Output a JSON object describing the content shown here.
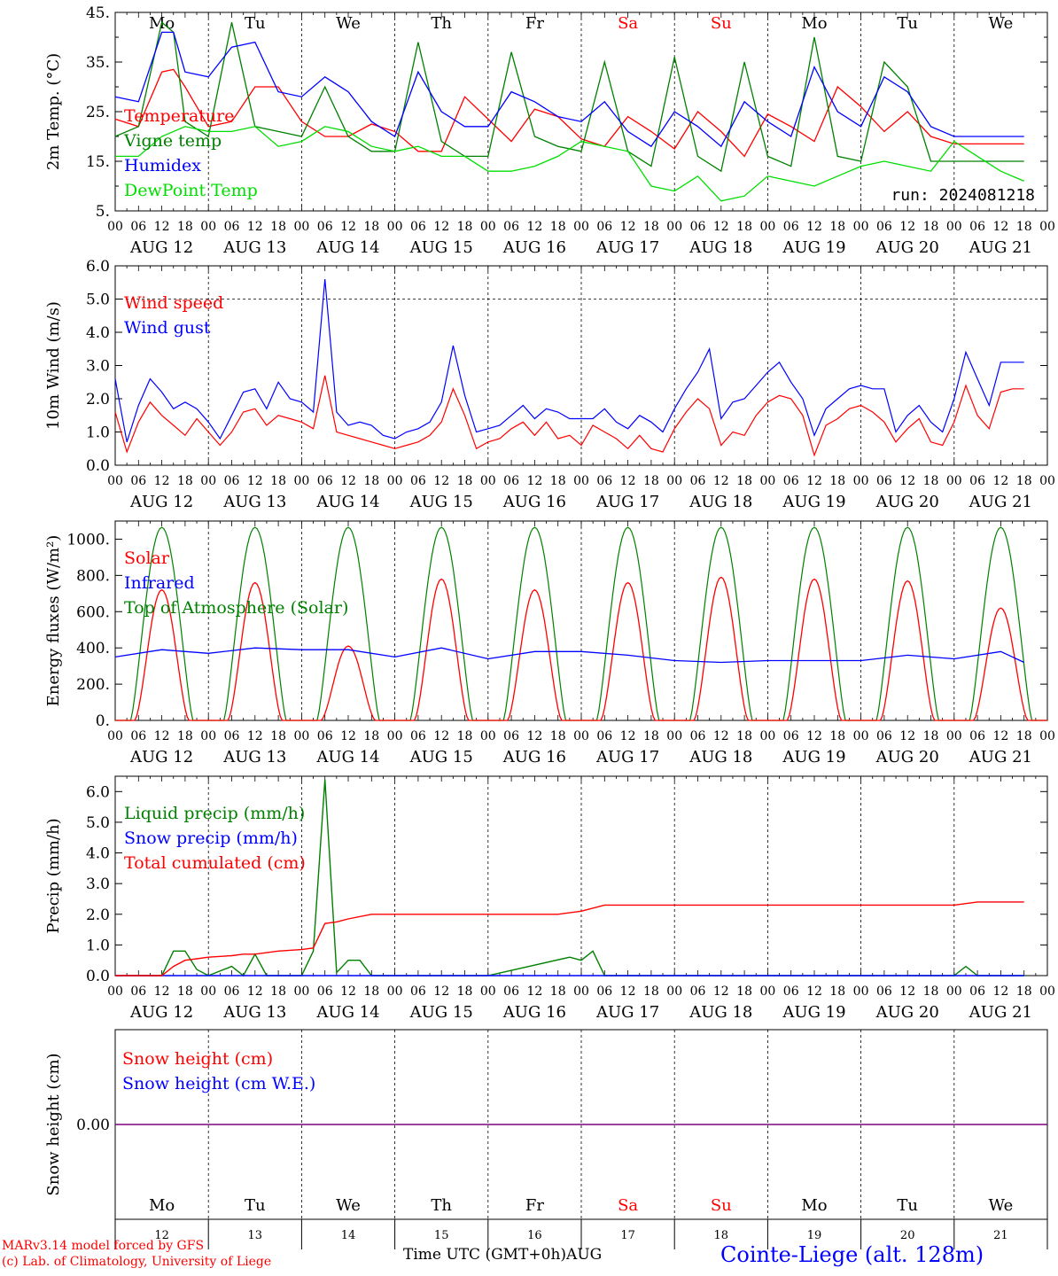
{
  "colors": {
    "red": "#ff0000",
    "green": "#008000",
    "blue": "#0000ff",
    "lightgreen": "#00dd00",
    "purple": "#800080",
    "axis": "#000000",
    "grid": "#000000"
  },
  "days": [
    "Mo",
    "Tu",
    "We",
    "Th",
    "Fr",
    "Sa",
    "Su",
    "Mo",
    "Tu",
    "We"
  ],
  "day_colors": [
    "#000000",
    "#000000",
    "#000000",
    "#000000",
    "#000000",
    "#ff0000",
    "#ff0000",
    "#000000",
    "#000000",
    "#000000"
  ],
  "dates": [
    "AUG 12",
    "AUG 13",
    "AUG 14",
    "AUG 15",
    "AUG 16",
    "AUG 17",
    "AUG 18",
    "AUG 19",
    "AUG 20",
    "AUG 21"
  ],
  "hour_ticks": [
    "00",
    "06",
    "12",
    "18"
  ],
  "day_numbers": [
    "12",
    "13",
    "14",
    "15",
    "16",
    "17",
    "18",
    "19",
    "20",
    "21"
  ],
  "footer": {
    "model": "MARv3.14 model forced by GFS",
    "lab": "(c) Lab. of Climatology, University of Liege",
    "time_label": "Time UTC (GMT+0h)",
    "month": "AUG",
    "station": "Cointe-Liege (alt. 128m)"
  },
  "chart_data": [
    {
      "type": "line",
      "ylabel": "2m Temp. (°C)",
      "ylim": [
        5,
        45
      ],
      "yticks": [
        "5.",
        "15.",
        "25.",
        "35.",
        "45."
      ],
      "annotation": "run: 2024081218",
      "x_unit": "hours from AUG 12 00 UTC",
      "series": [
        {
          "name": "Temperature",
          "color": "#ff0000",
          "x": [
            0,
            6,
            12,
            15,
            18,
            24,
            30,
            36,
            42,
            48,
            54,
            60,
            66,
            72,
            78,
            84,
            90,
            96,
            102,
            108,
            114,
            120,
            126,
            132,
            138,
            144,
            150,
            156,
            162,
            168,
            174,
            180,
            186,
            192,
            198,
            204,
            210,
            216,
            222,
            228,
            234
          ],
          "values": [
            23.5,
            22,
            33,
            33.5,
            30,
            22,
            23,
            30,
            30,
            23,
            20,
            20,
            22.5,
            21,
            17,
            17,
            28,
            23.5,
            19,
            25.5,
            24,
            19.5,
            18,
            24,
            21,
            17.5,
            25,
            21,
            16,
            24.5,
            22,
            19,
            30,
            26,
            21,
            25,
            20,
            18.5,
            18.5,
            18.5,
            18.5
          ]
        },
        {
          "name": "Vigne temp",
          "color": "#008000",
          "x": [
            0,
            6,
            12,
            15,
            18,
            24,
            30,
            36,
            42,
            48,
            54,
            60,
            66,
            72,
            78,
            84,
            90,
            96,
            102,
            108,
            114,
            120,
            126,
            132,
            138,
            144,
            150,
            156,
            162,
            168,
            174,
            180,
            186,
            192,
            198,
            204,
            210,
            216,
            222,
            228,
            234
          ],
          "values": [
            20,
            22,
            43,
            41,
            23,
            20,
            43,
            22,
            21,
            20,
            30,
            20,
            17,
            17,
            39,
            19,
            16,
            16,
            37,
            20,
            18,
            17,
            35,
            17,
            14,
            36,
            16,
            13,
            35,
            16,
            14,
            40,
            16,
            15,
            35,
            30,
            15,
            15,
            15,
            15,
            15
          ]
        },
        {
          "name": "Humidex",
          "color": "#0000ff",
          "x": [
            0,
            6,
            12,
            15,
            18,
            24,
            30,
            36,
            42,
            48,
            54,
            60,
            66,
            72,
            78,
            84,
            90,
            96,
            102,
            108,
            114,
            120,
            126,
            132,
            138,
            144,
            150,
            156,
            162,
            168,
            174,
            180,
            186,
            192,
            198,
            204,
            210,
            216,
            222,
            228,
            234
          ],
          "values": [
            28,
            27,
            41,
            41,
            33,
            32,
            38,
            39,
            29,
            28,
            32,
            29,
            23,
            20,
            33,
            25,
            22,
            22,
            29,
            27,
            24,
            23,
            27,
            21,
            18,
            25,
            22,
            18,
            27,
            23,
            20,
            34,
            25,
            22,
            32,
            29,
            22,
            20,
            20,
            20,
            20
          ]
        },
        {
          "name": "DewPoint Temp",
          "color": "#00dd00",
          "x": [
            0,
            6,
            12,
            18,
            24,
            30,
            36,
            42,
            48,
            54,
            60,
            66,
            72,
            78,
            84,
            90,
            96,
            102,
            108,
            114,
            120,
            126,
            132,
            138,
            144,
            150,
            156,
            162,
            168,
            174,
            180,
            186,
            192,
            198,
            204,
            210,
            216,
            222,
            228,
            234
          ],
          "values": [
            16,
            16,
            20,
            22,
            21,
            21,
            22,
            18,
            19,
            22,
            21,
            18,
            17,
            18,
            16,
            16,
            13,
            13,
            14,
            16,
            19,
            18,
            17,
            10,
            9,
            12,
            7,
            8,
            12,
            11,
            10,
            12,
            14,
            15,
            14,
            13,
            19,
            16,
            13,
            11
          ]
        }
      ]
    },
    {
      "type": "line",
      "ylabel": "10m Wind (m/s)",
      "ylim": [
        0,
        6
      ],
      "yticks": [
        "0.0",
        "1.0",
        "2.0",
        "3.0",
        "4.0",
        "5.0",
        "6.0"
      ],
      "series": [
        {
          "name": "Wind speed",
          "color": "#ff0000",
          "x": [
            0,
            3,
            6,
            9,
            12,
            15,
            18,
            21,
            24,
            27,
            30,
            33,
            36,
            39,
            42,
            45,
            48,
            51,
            54,
            57,
            60,
            63,
            66,
            69,
            72,
            75,
            78,
            81,
            84,
            87,
            90,
            93,
            96,
            99,
            102,
            105,
            108,
            111,
            114,
            117,
            120,
            123,
            126,
            129,
            132,
            135,
            138,
            141,
            144,
            147,
            150,
            153,
            156,
            159,
            162,
            165,
            168,
            171,
            174,
            177,
            180,
            183,
            186,
            189,
            192,
            195,
            198,
            201,
            204,
            207,
            210,
            213,
            216,
            219,
            222,
            225,
            228,
            231,
            234
          ],
          "values": [
            1.6,
            0.4,
            1.3,
            1.9,
            1.5,
            1.2,
            0.9,
            1.4,
            1.0,
            0.6,
            1.0,
            1.6,
            1.7,
            1.2,
            1.5,
            1.4,
            1.3,
            1.1,
            2.7,
            1.0,
            0.9,
            0.8,
            0.7,
            0.6,
            0.5,
            0.6,
            0.7,
            0.9,
            1.3,
            2.3,
            1.5,
            0.5,
            0.7,
            0.8,
            1.1,
            1.3,
            0.9,
            1.3,
            0.8,
            0.9,
            0.6,
            1.2,
            1.0,
            0.8,
            0.5,
            0.9,
            0.5,
            0.4,
            1.1,
            1.6,
            2.0,
            1.7,
            0.6,
            1.0,
            0.9,
            1.5,
            1.9,
            2.1,
            2.0,
            1.5,
            0.3,
            1.2,
            1.4,
            1.7,
            1.8,
            1.6,
            1.3,
            0.7,
            1.1,
            1.4,
            0.7,
            0.6,
            1.3,
            2.4,
            1.5,
            1.1,
            2.2,
            2.3,
            2.3
          ]
        },
        {
          "name": "Wind gust",
          "color": "#0000ff",
          "x": [
            0,
            3,
            6,
            9,
            12,
            15,
            18,
            21,
            24,
            27,
            30,
            33,
            36,
            39,
            42,
            45,
            48,
            51,
            54,
            57,
            60,
            63,
            66,
            69,
            72,
            75,
            78,
            81,
            84,
            87,
            90,
            93,
            96,
            99,
            102,
            105,
            108,
            111,
            114,
            117,
            120,
            123,
            126,
            129,
            132,
            135,
            138,
            141,
            144,
            147,
            150,
            153,
            156,
            159,
            162,
            165,
            168,
            171,
            174,
            177,
            180,
            183,
            186,
            189,
            192,
            195,
            198,
            201,
            204,
            207,
            210,
            213,
            216,
            219,
            222,
            225,
            228,
            231,
            234
          ],
          "values": [
            2.6,
            0.7,
            1.8,
            2.6,
            2.2,
            1.7,
            1.9,
            1.7,
            1.3,
            0.8,
            1.5,
            2.2,
            2.3,
            1.7,
            2.5,
            2.0,
            1.9,
            1.6,
            5.6,
            1.6,
            1.2,
            1.3,
            1.2,
            0.9,
            0.8,
            1.0,
            1.1,
            1.3,
            1.9,
            3.6,
            2.1,
            1.0,
            1.1,
            1.2,
            1.5,
            1.8,
            1.4,
            1.7,
            1.6,
            1.4,
            1.4,
            1.4,
            1.7,
            1.3,
            1.1,
            1.5,
            1.3,
            1.0,
            1.7,
            2.3,
            2.8,
            3.5,
            1.4,
            1.9,
            2.0,
            2.4,
            2.8,
            3.1,
            2.5,
            2.0,
            0.9,
            1.7,
            2.0,
            2.3,
            2.4,
            2.3,
            2.3,
            1.0,
            1.5,
            1.8,
            1.3,
            1.0,
            2.0,
            3.4,
            2.6,
            1.8,
            3.1,
            3.1,
            3.1
          ]
        }
      ]
    },
    {
      "type": "line",
      "ylabel": "Energy fluxes (W/m²)",
      "ylim": [
        0,
        1100
      ],
      "yticks": [
        "0.",
        "200.",
        "400.",
        "600.",
        "800.",
        "1000."
      ],
      "series": [
        {
          "name": "Solar",
          "color": "#ff0000",
          "peaks": [
            720,
            760,
            410,
            780,
            720,
            760,
            790,
            780,
            770,
            620
          ],
          "peak_hours": [
            10,
            12,
            14,
            12,
            12,
            12,
            12,
            12,
            12,
            10
          ]
        },
        {
          "name": "Infrared",
          "color": "#0000ff",
          "x": [
            0,
            12,
            24,
            36,
            48,
            60,
            72,
            84,
            96,
            108,
            120,
            132,
            144,
            156,
            168,
            180,
            192,
            204,
            216,
            228,
            234
          ],
          "values": [
            350,
            390,
            370,
            400,
            390,
            390,
            350,
            400,
            340,
            380,
            380,
            360,
            330,
            320,
            330,
            330,
            330,
            360,
            340,
            380,
            320
          ]
        },
        {
          "name": "Top of Atmosphere (Solar)",
          "color": "#008000",
          "peak": 1065
        }
      ]
    },
    {
      "type": "line",
      "ylabel": "Precip (mm/h)",
      "ylim": [
        0,
        6.5
      ],
      "yticks": [
        "0.0",
        "1.0",
        "2.0",
        "3.0",
        "4.0",
        "5.0",
        "6.0"
      ],
      "series": [
        {
          "name": "Liquid precip (mm/h)",
          "color": "#008000",
          "x": [
            0,
            12,
            15,
            18,
            21,
            24,
            30,
            33,
            36,
            39,
            42,
            45,
            48,
            51,
            54,
            57,
            60,
            63,
            66,
            69,
            72,
            96,
            117,
            120,
            123,
            126,
            129,
            144,
            216,
            219,
            222,
            225,
            234
          ],
          "values": [
            0,
            0,
            0.8,
            0.8,
            0.2,
            0,
            0.3,
            0,
            0.7,
            0,
            0,
            0,
            0,
            0.8,
            6.4,
            0.1,
            0.5,
            0.5,
            0,
            0,
            0,
            0,
            0.6,
            0.5,
            0.8,
            0,
            0,
            0,
            0,
            0.3,
            0,
            0,
            0
          ]
        },
        {
          "name": "Snow precip (mm/h)",
          "color": "#0000ff",
          "x": [
            0,
            234
          ],
          "values": [
            0,
            0
          ]
        },
        {
          "name": "Total cumulated (cm)",
          "color": "#ff0000",
          "x": [
            0,
            12,
            15,
            18,
            21,
            24,
            30,
            33,
            36,
            42,
            48,
            51,
            54,
            57,
            60,
            66,
            72,
            96,
            114,
            120,
            126,
            129,
            216,
            219,
            222,
            234
          ],
          "values": [
            0,
            0,
            0.3,
            0.5,
            0.55,
            0.6,
            0.65,
            0.7,
            0.7,
            0.8,
            0.85,
            0.9,
            1.7,
            1.75,
            1.85,
            2.0,
            2.0,
            2.0,
            2.0,
            2.1,
            2.3,
            2.3,
            2.3,
            2.35,
            2.4,
            2.4
          ]
        }
      ]
    },
    {
      "type": "line",
      "ylabel": "Snow height (cm)",
      "yticks": [
        "0.00"
      ],
      "series": [
        {
          "name": "Snow height (cm)",
          "color": "#ff0000",
          "x": [
            0,
            240
          ],
          "values": [
            0,
            0
          ]
        },
        {
          "name": "Snow height (cm W.E.)",
          "color": "#0000ff",
          "x": [
            0,
            240
          ],
          "values": [
            0,
            0
          ]
        }
      ]
    }
  ]
}
